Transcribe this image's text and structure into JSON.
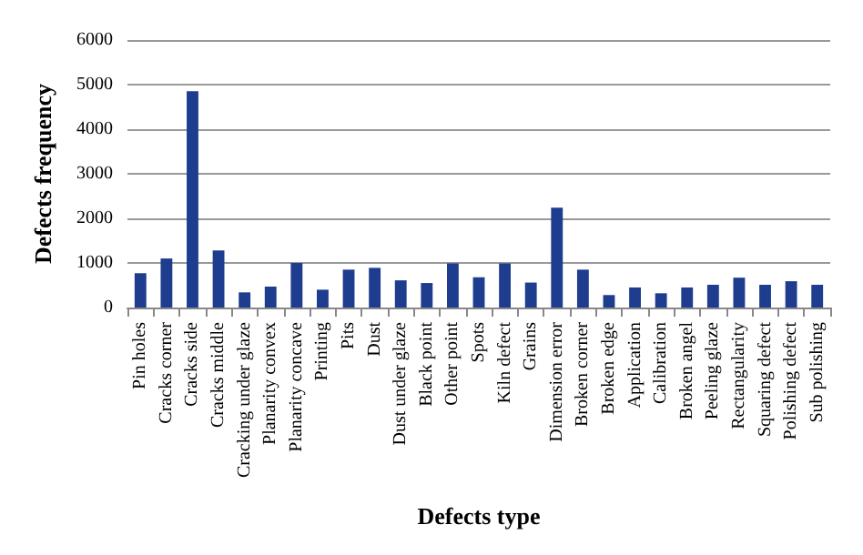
{
  "chart_data": {
    "type": "bar",
    "xlabel": "Defects type",
    "ylabel": "Defects frequency",
    "categories": [
      "Pin holes",
      "Cracks corner",
      "Cracks side",
      "Cracks middle",
      "Cracking under glaze",
      "Planarity convex",
      "Planarity concave",
      "Printing",
      "Pits",
      "Dust",
      "Dust under glaze",
      "Black point",
      "Other point",
      "Spots",
      "Kiln defect",
      "Grains",
      "Dimension error",
      "Broken corner",
      "Broken edge",
      "Application",
      "Calibration",
      "Broken angel",
      "Peeling glaze",
      "Rectangularity",
      "Squaring defect",
      "Polishing defect",
      "Sub polishing"
    ],
    "values": [
      770,
      1100,
      4850,
      1280,
      340,
      470,
      1000,
      400,
      850,
      890,
      610,
      550,
      990,
      680,
      990,
      560,
      2240,
      850,
      280,
      450,
      320,
      450,
      510,
      670,
      510,
      590,
      510
    ],
    "color": "#1f3d8f",
    "ylim": [
      0,
      6000
    ],
    "yticks": [
      0,
      1000,
      2000,
      3000,
      4000,
      5000,
      6000
    ],
    "grid": "y"
  }
}
